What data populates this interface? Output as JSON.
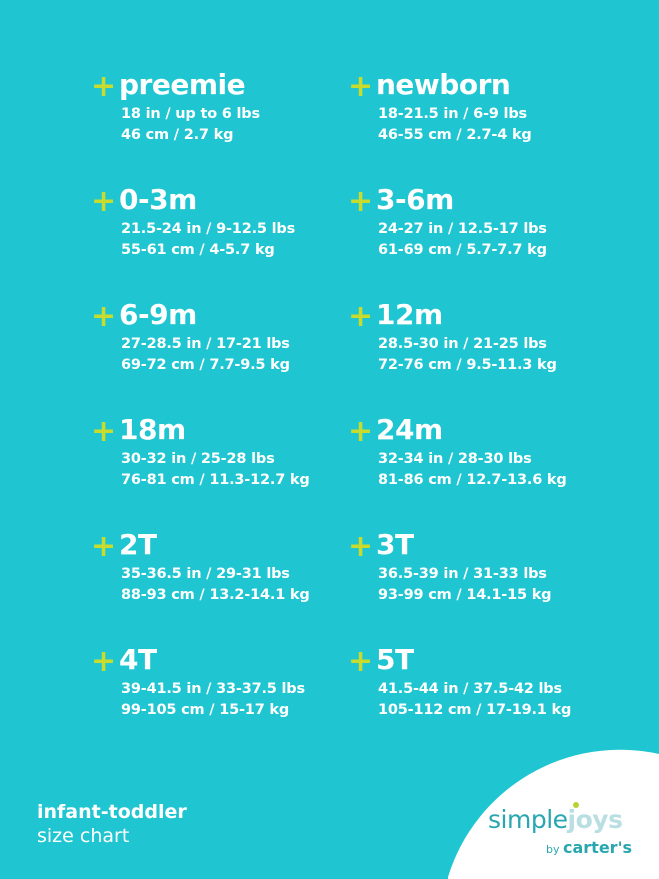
{
  "colors": {
    "background": "#1fc6d1",
    "plus": "#c7dc2c",
    "text": "#ffffff"
  },
  "icon": "plus-icon",
  "plus_glyph": "+",
  "sizes": [
    {
      "label": "preemie",
      "imperial": "18 in / up to 6 lbs",
      "metric": "46 cm / 2.7 kg"
    },
    {
      "label": "newborn",
      "imperial": "18-21.5 in / 6-9 lbs",
      "metric": "46-55 cm / 2.7-4 kg"
    },
    {
      "label": "0-3m",
      "imperial": "21.5-24 in / 9-12.5 lbs",
      "metric": "55-61 cm / 4-5.7 kg"
    },
    {
      "label": "3-6m",
      "imperial": "24-27 in / 12.5-17 lbs",
      "metric": "61-69 cm / 5.7-7.7 kg"
    },
    {
      "label": "6-9m",
      "imperial": "27-28.5 in / 17-21 lbs",
      "metric": "69-72 cm / 7.7-9.5 kg"
    },
    {
      "label": "12m",
      "imperial": "28.5-30 in / 21-25 lbs",
      "metric": "72-76 cm / 9.5-11.3 kg"
    },
    {
      "label": "18m",
      "imperial": "30-32 in / 25-28 lbs",
      "metric": "76-81 cm / 11.3-12.7 kg"
    },
    {
      "label": "24m",
      "imperial": "32-34 in / 28-30 lbs",
      "metric": "81-86 cm / 12.7-13.6 kg"
    },
    {
      "label": "2T",
      "imperial": "35-36.5 in / 29-31 lbs",
      "metric": "88-93 cm / 13.2-14.1 kg"
    },
    {
      "label": "3T",
      "imperial": "36.5-39 in / 31-33 lbs",
      "metric": "93-99 cm / 14.1-15 kg"
    },
    {
      "label": "4T",
      "imperial": "39-41.5 in / 33-37.5 lbs",
      "metric": "99-105 cm / 15-17 kg"
    },
    {
      "label": "5T",
      "imperial": "41.5-44 in / 37.5-42 lbs",
      "metric": "105-112 cm / 17-19.1 kg"
    }
  ],
  "footer": {
    "title": "infant-toddler",
    "subtitle": "size chart"
  },
  "logo": {
    "simple": "simple",
    "joys": "joys",
    "by": "by",
    "brand": "carter's"
  }
}
